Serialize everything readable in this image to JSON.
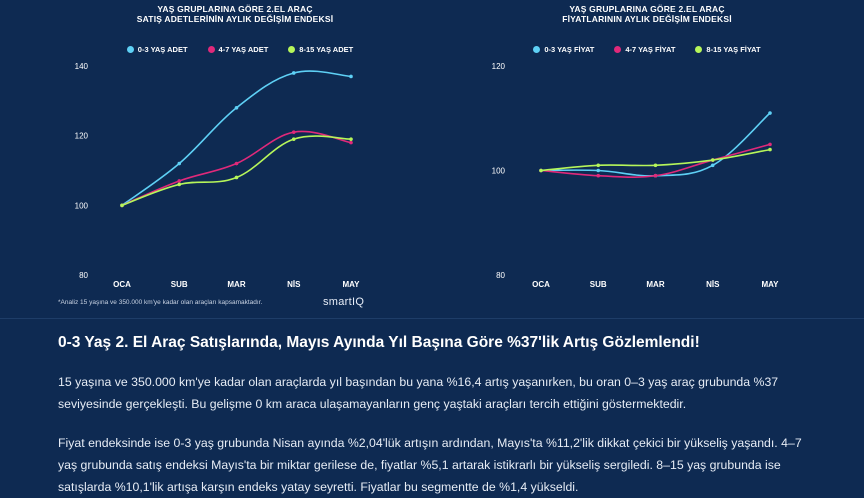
{
  "charts": [
    {
      "title_line1": "YAŞ GRUPLARINA GÖRE 2.EL ARAÇ",
      "title_line2": "SATIŞ ADETLERİNİN AYLIK DEĞİŞİM ENDEKSİ",
      "legend": [
        "0-3 YAŞ ADET",
        "4-7 YAŞ ADET",
        "8-15 YAŞ ADET"
      ]
    },
    {
      "title_line1": "YAŞ GRUPLARINA GÖRE 2.EL ARAÇ",
      "title_line2": "FİYATLARININ AYLIK DEĞİŞİM ENDEKSİ",
      "legend": [
        "0-3 YAŞ FİYAT",
        "4-7 YAŞ FİYAT",
        "8-15 YAŞ FİYAT"
      ]
    }
  ],
  "chart_data": [
    {
      "type": "line",
      "title": "YAŞ GRUPLARINA GÖRE 2.EL ARAÇ SATIŞ ADETLERİNİN AYLIK DEĞİŞİM ENDEKSİ",
      "categories": [
        "OCA",
        "SUB",
        "MAR",
        "NİS",
        "MAY"
      ],
      "ylim": [
        80,
        140
      ],
      "yticks": [
        80,
        100,
        120,
        140
      ],
      "series": [
        {
          "name": "0-3 YAŞ ADET",
          "color": "#5ed0f5",
          "values": [
            100,
            112,
            128,
            138,
            137
          ]
        },
        {
          "name": "4-7 YAŞ ADET",
          "color": "#e0297a",
          "values": [
            100,
            107,
            112,
            121,
            118
          ]
        },
        {
          "name": "8-15 YAŞ ADET",
          "color": "#b6f65a",
          "values": [
            100,
            106,
            108,
            119,
            119
          ]
        }
      ]
    },
    {
      "type": "line",
      "title": "YAŞ GRUPLARINA GÖRE 2.EL ARAÇ FİYATLARININ AYLIK DEĞİŞİM ENDEKSİ",
      "categories": [
        "OCA",
        "SUB",
        "MAR",
        "NİS",
        "MAY"
      ],
      "ylim": [
        80,
        120
      ],
      "yticks": [
        80,
        100,
        120
      ],
      "series": [
        {
          "name": "0-3 YAŞ FİYAT",
          "color": "#5ed0f5",
          "values": [
            100,
            100,
            99,
            101,
            111
          ]
        },
        {
          "name": "4-7 YAŞ FİYAT",
          "color": "#e0297a",
          "values": [
            100,
            99,
            99,
            102,
            105
          ]
        },
        {
          "name": "8-15 YAŞ FİYAT",
          "color": "#b6f65a",
          "values": [
            100,
            101,
            101,
            102,
            104
          ]
        }
      ]
    }
  ],
  "footnote": "*Analiz 15 yaşına ve 350.000 km'ye kadar olan araçları kapsamaktadır.",
  "brand": "smartIQ",
  "headline": "0-3 Yaş 2. El Araç Satışlarında, Mayıs Ayında Yıl Başına Göre %37'lik Artış Gözlemlendi!",
  "paragraphs": [
    "15 yaşına ve 350.000 km'ye kadar olan araçlarda yıl başından bu yana %16,4 artış yaşanırken, bu oran 0–3 yaş araç grubunda %37 seviyesinde gerçekleşti. Bu gelişme 0 km araca ulaşamayanların genç yaştaki araçları tercih ettiğini göstermektedir.",
    "Fiyat endeksinde ise 0-3 yaş grubunda Nisan ayında %2,04'lük artışın ardından, Mayıs'ta %11,2'lik dikkat çekici bir yükseliş yaşandı. 4–7 yaş grubunda satış endeksi Mayıs'ta bir miktar gerilese de, fiyatlar %5,1 artarak istikrarlı bir yükseliş sergiledi. 8–15 yaş grubunda ise satışlarda %10,1'lik artışa karşın endeks yatay seyretti. Fiyatlar bu segmentte de %1,4 yükseldi."
  ]
}
